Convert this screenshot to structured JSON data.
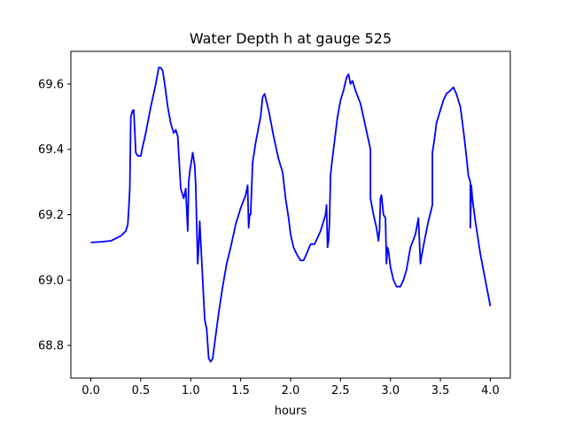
{
  "chart_data": {
    "type": "line",
    "title": "Water Depth h at gauge 525",
    "xlabel": "hours",
    "ylabel": "",
    "xlim": [
      -0.2,
      4.2
    ],
    "ylim": [
      68.7,
      69.7
    ],
    "xticks": [
      {
        "value": 0.0,
        "label": "0.0"
      },
      {
        "value": 0.5,
        "label": "0.5"
      },
      {
        "value": 1.0,
        "label": "1.0"
      },
      {
        "value": 1.5,
        "label": "1.5"
      },
      {
        "value": 2.0,
        "label": "2.0"
      },
      {
        "value": 2.5,
        "label": "2.5"
      },
      {
        "value": 3.0,
        "label": "3.0"
      },
      {
        "value": 3.5,
        "label": "3.5"
      },
      {
        "value": 4.0,
        "label": "4.0"
      }
    ],
    "yticks": [
      {
        "value": 68.8,
        "label": "68.8"
      },
      {
        "value": 69.0,
        "label": "69.0"
      },
      {
        "value": 69.2,
        "label": "69.2"
      },
      {
        "value": 69.4,
        "label": "69.4"
      },
      {
        "value": 69.6,
        "label": "69.6"
      }
    ],
    "grid": false,
    "series": [
      {
        "color": "#0000ff",
        "x": [
          0.0,
          0.1,
          0.2,
          0.3,
          0.35,
          0.37,
          0.38,
          0.39,
          0.4,
          0.41,
          0.42,
          0.43,
          0.45,
          0.47,
          0.5,
          0.52,
          0.55,
          0.6,
          0.65,
          0.68,
          0.7,
          0.72,
          0.74,
          0.77,
          0.8,
          0.83,
          0.85,
          0.87,
          0.9,
          0.93,
          0.95,
          0.97,
          0.98,
          0.99,
          1.0,
          1.02,
          1.04,
          1.05,
          1.07,
          1.08,
          1.09,
          1.1,
          1.11,
          1.12,
          1.14,
          1.16,
          1.18,
          1.2,
          1.22,
          1.25,
          1.28,
          1.32,
          1.36,
          1.4,
          1.45,
          1.5,
          1.55,
          1.57,
          1.58,
          1.59,
          1.6,
          1.62,
          1.65,
          1.7,
          1.72,
          1.74,
          1.78,
          1.83,
          1.88,
          1.92,
          1.95,
          1.98,
          2.0,
          2.03,
          2.06,
          2.1,
          2.13,
          2.16,
          2.2,
          2.24,
          2.27,
          2.3,
          2.33,
          2.35,
          2.36,
          2.37,
          2.38,
          2.39,
          2.4,
          2.41,
          2.43,
          2.45,
          2.47,
          2.5,
          2.53,
          2.56,
          2.58,
          2.6,
          2.62,
          2.65,
          2.7,
          2.75,
          2.8,
          2.8,
          2.83,
          2.86,
          2.88,
          2.89,
          2.9,
          2.91,
          2.93,
          2.95,
          2.96,
          2.97,
          2.98,
          3.0,
          3.03,
          3.06,
          3.1,
          3.13,
          3.16,
          3.2,
          3.25,
          3.28,
          3.3,
          3.31,
          3.34,
          3.38,
          3.42,
          3.42,
          3.44,
          3.46,
          3.48,
          3.5,
          3.53,
          3.56,
          3.6,
          3.63,
          3.66,
          3.7,
          3.73,
          3.76,
          3.78,
          3.8,
          3.8,
          3.81,
          3.82,
          3.85,
          3.9,
          3.95,
          4.0
        ],
        "y": [
          69.115,
          69.117,
          69.12,
          69.135,
          69.15,
          69.17,
          69.22,
          69.28,
          69.5,
          69.51,
          69.52,
          69.52,
          69.39,
          69.38,
          69.38,
          69.41,
          69.45,
          69.53,
          69.6,
          69.65,
          69.65,
          69.64,
          69.6,
          69.53,
          69.48,
          69.45,
          69.46,
          69.44,
          69.28,
          69.25,
          69.28,
          69.15,
          69.3,
          69.33,
          69.35,
          69.39,
          69.35,
          69.29,
          69.05,
          69.1,
          69.18,
          69.12,
          69.06,
          69.0,
          68.88,
          68.85,
          68.76,
          68.75,
          68.76,
          68.83,
          68.9,
          68.98,
          69.05,
          69.1,
          69.17,
          69.22,
          69.26,
          69.29,
          69.16,
          69.2,
          69.2,
          69.36,
          69.42,
          69.5,
          69.56,
          69.57,
          69.52,
          69.44,
          69.37,
          69.33,
          69.25,
          69.19,
          69.14,
          69.1,
          69.08,
          69.06,
          69.06,
          69.08,
          69.11,
          69.11,
          69.13,
          69.15,
          69.18,
          69.2,
          69.23,
          69.1,
          69.12,
          69.18,
          69.32,
          69.35,
          69.4,
          69.45,
          69.5,
          69.55,
          69.58,
          69.62,
          69.63,
          69.6,
          69.61,
          69.58,
          69.54,
          69.47,
          69.4,
          69.25,
          69.2,
          69.16,
          69.12,
          69.15,
          69.25,
          69.26,
          69.2,
          69.19,
          69.05,
          69.1,
          69.09,
          69.04,
          69.0,
          68.98,
          68.98,
          69.0,
          69.03,
          69.1,
          69.14,
          69.19,
          69.05,
          69.07,
          69.12,
          69.18,
          69.23,
          69.39,
          69.43,
          69.48,
          69.5,
          69.52,
          69.55,
          69.57,
          69.58,
          69.59,
          69.57,
          69.53,
          69.46,
          69.38,
          69.32,
          69.3,
          69.16,
          69.29,
          69.25,
          69.18,
          69.08,
          69.0,
          68.92
        ]
      }
    ]
  }
}
